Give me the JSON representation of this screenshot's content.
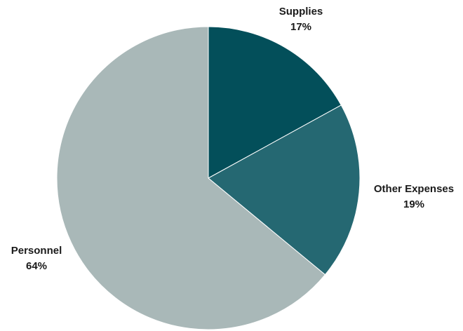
{
  "chart_data": {
    "type": "pie",
    "title": "",
    "slices": [
      {
        "name": "Supplies",
        "value": 17,
        "value_label": "17%",
        "color": "#034f5a"
      },
      {
        "name": "Other Expenses",
        "value": 19,
        "value_label": "19%",
        "color": "#256872"
      },
      {
        "name": "Personnel",
        "value": 64,
        "value_label": "64%",
        "color": "#a9b8b8"
      }
    ],
    "start": "12 o'clock",
    "direction": "clockwise",
    "legend": "none",
    "data_labels": "outside"
  }
}
